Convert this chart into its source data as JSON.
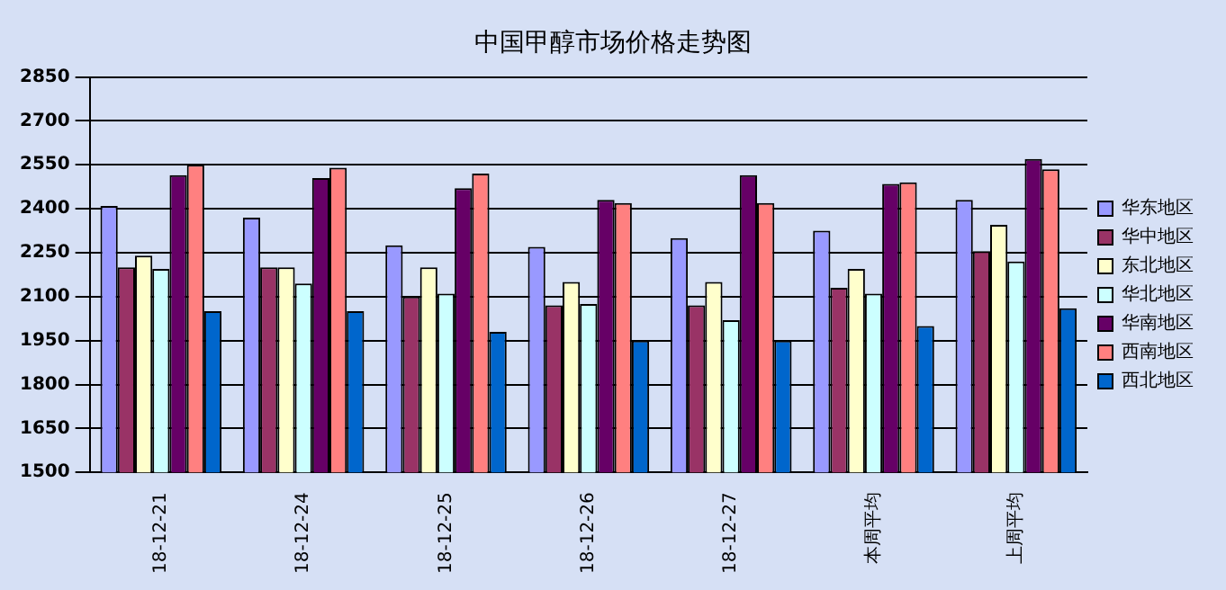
{
  "chart_data": {
    "type": "bar",
    "title": "中国甲醇市场价格走势图",
    "categories": [
      "18-12-21",
      "18-12-24",
      "18-12-25",
      "18-12-26",
      "18-12-27",
      "本周平均",
      "上周平均"
    ],
    "series": [
      {
        "name": "华东地区",
        "color": "#9999ff",
        "values": [
          2410,
          2370,
          2275,
          2270,
          2300,
          2325,
          2430
        ]
      },
      {
        "name": "华中地区",
        "color": "#993366",
        "values": [
          2200,
          2200,
          2100,
          2070,
          2070,
          2130,
          2255
        ]
      },
      {
        "name": "东北地区",
        "color": "#ffffcc",
        "values": [
          2240,
          2200,
          2200,
          2150,
          2150,
          2195,
          2345
        ]
      },
      {
        "name": "华北地区",
        "color": "#ccffff",
        "values": [
          2195,
          2145,
          2110,
          2075,
          2020,
          2110,
          2220
        ]
      },
      {
        "name": "华南地区",
        "color": "#660066",
        "values": [
          2515,
          2505,
          2470,
          2430,
          2515,
          2485,
          2570
        ]
      },
      {
        "name": "西南地区",
        "color": "#ff8080",
        "values": [
          2550,
          2540,
          2520,
          2420,
          2420,
          2490,
          2535
        ]
      },
      {
        "name": "西北地区",
        "color": "#0066cc",
        "values": [
          2050,
          2050,
          1980,
          1950,
          1950,
          2000,
          2060
        ]
      }
    ],
    "ylim": [
      1500,
      2850
    ],
    "yticks": [
      1500,
      1650,
      1800,
      1950,
      2100,
      2250,
      2400,
      2550,
      2700,
      2850
    ],
    "grid": "y",
    "legend": "right"
  }
}
